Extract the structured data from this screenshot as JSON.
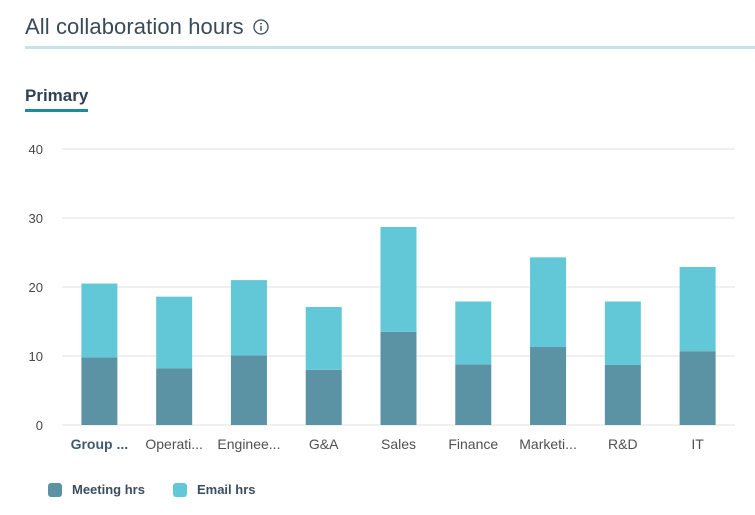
{
  "header": {
    "title": "All collaboration hours",
    "info_icon": "info-icon"
  },
  "tabs": {
    "active_label": "Primary"
  },
  "colors": {
    "meeting": "#5b93a5",
    "email": "#62c8d8",
    "grid": "#e1e1e1",
    "axis_text": "#484848"
  },
  "legend": {
    "meeting_label": "Meeting hrs",
    "email_label": "Email hrs"
  },
  "chart_data": {
    "type": "bar",
    "stacked": true,
    "categories": [
      "Group ...",
      "Operati...",
      "Enginee...",
      "G&A",
      "Sales",
      "Finance",
      "Marketi...",
      "R&D",
      "IT"
    ],
    "bold_category_index": 0,
    "series": [
      {
        "name": "Meeting hrs",
        "values": [
          9.8,
          8.2,
          10.1,
          8.0,
          13.5,
          8.8,
          11.3,
          8.7,
          10.7
        ]
      },
      {
        "name": "Email hrs",
        "values": [
          10.7,
          10.4,
          10.9,
          9.1,
          15.2,
          9.1,
          13.0,
          9.2,
          12.2
        ]
      }
    ],
    "ylim": [
      0,
      40
    ],
    "yticks": [
      "0",
      "10",
      "20",
      "30",
      "40"
    ],
    "grid": true,
    "legend_position": "bottom-left"
  }
}
